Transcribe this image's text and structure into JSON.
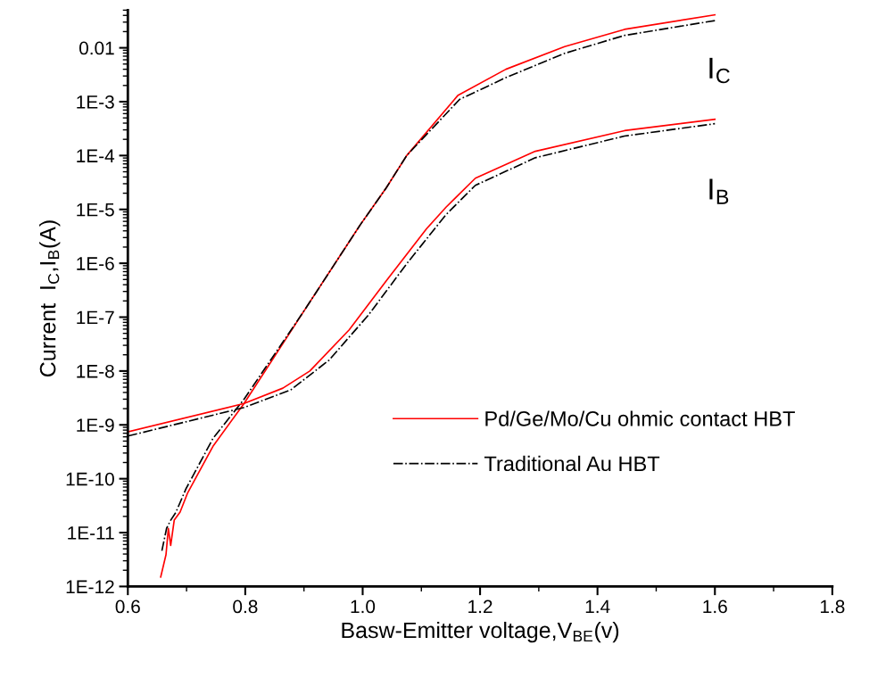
{
  "chart_data": {
    "type": "line",
    "xlabel": "Basw-Emitter voltage,V$_{BE}$(v)",
    "ylabel": "Current  I$_{C}$,I$_{B}$(A)",
    "log": "y",
    "grid": false,
    "legend": "bottom right",
    "marker": "none",
    "xlim": [
      0.6,
      1.8
    ],
    "ylim": [
      1e-12,
      0.05
    ],
    "xticks": [
      {
        "value": 0.6,
        "label": "0.6"
      },
      {
        "value": 0.8,
        "label": "0.8"
      },
      {
        "value": 1.0,
        "label": "1.0"
      },
      {
        "value": 1.2,
        "label": "1.2"
      },
      {
        "value": 1.4,
        "label": "1.4"
      },
      {
        "value": 1.6,
        "label": "1.6"
      },
      {
        "value": 1.8,
        "label": "1.8"
      }
    ],
    "yticks": [
      {
        "value": 1e-12,
        "label": "1E-12"
      },
      {
        "value": 1e-11,
        "label": "1E-11"
      },
      {
        "value": 1e-10,
        "label": "1E-10"
      },
      {
        "value": 1e-09,
        "label": "1E-9"
      },
      {
        "value": 1e-08,
        "label": "1E-8"
      },
      {
        "value": 1e-07,
        "label": "1E-7"
      },
      {
        "value": 1e-06,
        "label": "1E-6"
      },
      {
        "value": 1e-05,
        "label": "1E-5"
      },
      {
        "value": 0.0001,
        "label": "1E-4"
      },
      {
        "value": 0.001,
        "label": "1E-3"
      },
      {
        "value": 0.01,
        "label": "0.01"
      }
    ],
    "series": [
      {
        "name": "Pd/Ge/Mo/Cu ohmic contact HBT",
        "color": "#ff0000",
        "line_style": "solid",
        "x": [
          0.656,
          0.665,
          0.669,
          0.673,
          0.679,
          0.689,
          0.702,
          0.745,
          0.798,
          0.9,
          0.996,
          1.04,
          1.075,
          1.162,
          1.244,
          1.344,
          1.446,
          1.6
        ],
        "values": [
          1.5e-12,
          3.9e-12,
          1.2e-11,
          5.8e-12,
          1.7e-11,
          2.4e-11,
          5.5e-11,
          4e-10,
          2.5e-09,
          1.3e-07,
          5.2e-06,
          2.5e-05,
          0.0001,
          0.0013,
          0.004,
          0.0105,
          0.022,
          0.041
        ]
      },
      {
        "name": "Traditional Au HBT",
        "color": "#000000",
        "line_style": "dashdot",
        "x": [
          0.658,
          0.666,
          0.673,
          0.682,
          0.699,
          0.745,
          0.798,
          0.9,
          0.996,
          1.04,
          1.075,
          1.165,
          1.244,
          1.344,
          1.446,
          1.6
        ],
        "values": [
          4.6e-12,
          1.2e-11,
          1.7e-11,
          2.4e-11,
          6.5e-11,
          5.6e-10,
          3e-09,
          1.3e-07,
          5.2e-06,
          2.5e-05,
          0.0001,
          0.0011,
          0.0028,
          0.0079,
          0.017,
          0.032
        ]
      },
      {
        "color": "#ff0000",
        "line_style": "solid",
        "x": [
          0.6,
          0.798,
          0.864,
          0.91,
          0.977,
          1.042,
          1.109,
          1.142,
          1.192,
          1.294,
          1.446,
          1.6
        ],
        "values": [
          7.4e-10,
          2.5e-09,
          4.8e-09,
          1e-08,
          5.8e-08,
          5e-07,
          4.4e-06,
          1.1e-05,
          3.8e-05,
          0.00012,
          0.00029,
          0.00047
        ]
      },
      {
        "color": "#000000",
        "line_style": "dashdot",
        "x": [
          0.6,
          0.798,
          0.878,
          0.943,
          1.01,
          1.075,
          1.142,
          1.192,
          1.294,
          1.446,
          1.6
        ],
        "values": [
          6.2e-10,
          2.1e-09,
          4.5e-09,
          1.6e-08,
          1.1e-07,
          9.8e-07,
          8e-06,
          2.8e-05,
          9.1e-05,
          0.00023,
          0.00039
        ]
      }
    ],
    "annotations": [
      "I$_{C}$",
      "I$_{B}$"
    ]
  }
}
